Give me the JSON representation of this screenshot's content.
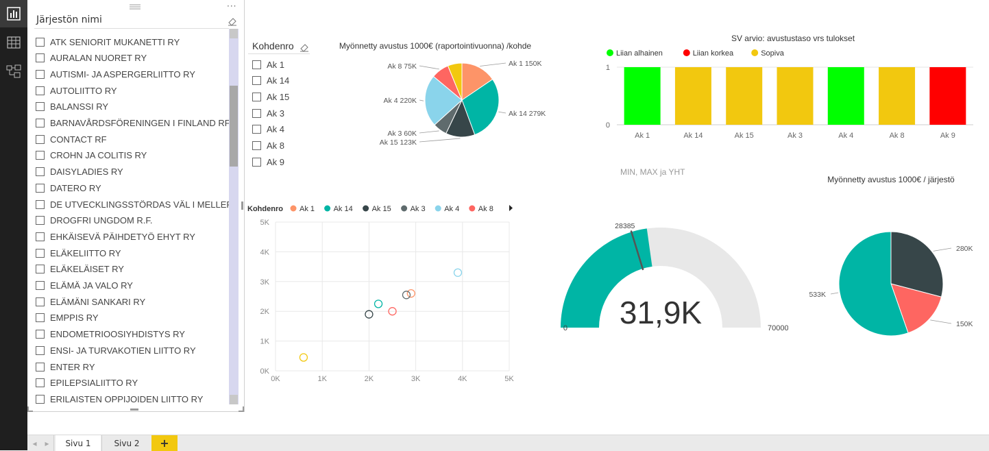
{
  "nav": {
    "items": [
      {
        "icon": "report-view-icon",
        "active": true
      },
      {
        "icon": "data-view-icon",
        "active": false
      },
      {
        "icon": "relationships-view-icon",
        "active": false
      }
    ]
  },
  "org_slicer": {
    "title": "Järjestön nimi",
    "items": [
      "ATK SENIORIT MUKANETTI RY",
      "AURALAN NUORET RY",
      "AUTISMI- JA ASPERGERLIITTO RY",
      "AUTOLIITTO RY",
      "BALANSSI RY",
      "BARNAVÅRDSFÖRENINGEN I FINLAND RF",
      "CONTACT RF",
      "CROHN JA COLITIS RY",
      "DAISYLADIES RY",
      "DATERO RY",
      "DE UTVECKLINGSSTÖRDAS VÄL I MELLERSTA",
      "DROGFRI UNGDOM R.F.",
      "EHKÄISEVÄ PÄIHDETYÖ EHYT RY",
      "ELÄKELIITTO RY",
      "ELÄKELÄISET RY",
      "ELÄMÄ JA VALO RY",
      "ELÄMÄNI SANKARI RY",
      "EMPPIS RY",
      "ENDOMETRIOOSIYHDISTYS RY",
      "ENSI- JA TURVAKOTIEN LIITTO RY",
      "ENTER RY",
      "EPILEPSIALIITTO RY",
      "ERILAISTEN OPPIJOIDEN LIITTO RY"
    ]
  },
  "kohde_slicer": {
    "title": "Kohdenro",
    "items": [
      "Ak 1",
      "Ak 14",
      "Ak 15",
      "Ak 3",
      "Ak 4",
      "Ak 8",
      "Ak 9"
    ]
  },
  "tabs": [
    {
      "label": "Sivu 1",
      "active": true
    },
    {
      "label": "Sivu 2",
      "active": false
    },
    {
      "label": "+",
      "add": true
    }
  ],
  "gauge_title": "MIN, MAX ja YHT",
  "colors": {
    "ak1": "#fd9468",
    "ak14": "#00b5a5",
    "ak15": "#374649",
    "ak3": "#5f6b6d",
    "ak4": "#8ad4eb",
    "ak8": "#fe6661",
    "ak9": "#f2c80f",
    "green": "#00ff00",
    "red": "#ff0000",
    "gold": "#f2c80f",
    "track": "#e8e8e8",
    "accent_tab": "#f2c80f"
  },
  "chart_data": [
    {
      "id": "pie-kohde",
      "type": "pie",
      "title": "Myönnetty avustus 1000€ (raportointivuonna) /kohde",
      "slices": [
        {
          "name": "Ak 1",
          "value": 150,
          "label": "Ak 1 150K"
        },
        {
          "name": "Ak 14",
          "value": 279,
          "label": "Ak 14 279K"
        },
        {
          "name": "Ak 15",
          "value": 123,
          "label": "Ak 15 123K"
        },
        {
          "name": "Ak 3",
          "value": 60,
          "label": "Ak 3 60K"
        },
        {
          "name": "Ak 4",
          "value": 220,
          "label": "Ak 4 220K"
        },
        {
          "name": "Ak 8",
          "value": 75,
          "label": "Ak 8 75K"
        },
        {
          "name": "Ak 9",
          "value": 60,
          "label": ""
        }
      ]
    },
    {
      "id": "bar-sv",
      "type": "bar",
      "title": "SV arvio: avustustaso vrs tulokset",
      "legend": [
        {
          "name": "Liian alhainen",
          "color": "#00ff00"
        },
        {
          "name": "Liian korkea",
          "color": "#ff0000"
        },
        {
          "name": "Sopiva",
          "color": "#f2c80f"
        }
      ],
      "categories": [
        "Ak 1",
        "Ak 14",
        "Ak 15",
        "Ak 3",
        "Ak 4",
        "Ak 8",
        "Ak 9"
      ],
      "values": [
        1,
        1,
        1,
        1,
        1,
        1,
        1
      ],
      "status": [
        "Liian alhainen",
        "Sopiva",
        "Sopiva",
        "Sopiva",
        "Liian alhainen",
        "Sopiva",
        "Liian korkea"
      ],
      "yticks": [
        "0",
        "1"
      ],
      "ylim": [
        0,
        1
      ]
    },
    {
      "id": "scatter-kohde",
      "type": "scatter",
      "legend_title": "Kohdenro",
      "legend": [
        "Ak 1",
        "Ak 14",
        "Ak 15",
        "Ak 3",
        "Ak 4",
        "Ak 8"
      ],
      "points": [
        {
          "name": "Ak 1",
          "x": 2900,
          "y": 2600
        },
        {
          "name": "Ak 14",
          "x": 2200,
          "y": 2250
        },
        {
          "name": "Ak 15",
          "x": 2000,
          "y": 1900
        },
        {
          "name": "Ak 3",
          "x": 2800,
          "y": 2550
        },
        {
          "name": "Ak 4",
          "x": 3900,
          "y": 3300
        },
        {
          "name": "Ak 8",
          "x": 2500,
          "y": 2000
        },
        {
          "name": "Ak 9",
          "x": 600,
          "y": 450
        }
      ],
      "xticks": [
        "0K",
        "1K",
        "2K",
        "3K",
        "4K",
        "5K"
      ],
      "yticks": [
        "0K",
        "1K",
        "2K",
        "3K",
        "4K",
        "5K"
      ],
      "xlim": [
        0,
        5000
      ],
      "ylim": [
        0,
        5000
      ]
    },
    {
      "id": "gauge",
      "type": "gauge",
      "value": 31900,
      "value_label": "31,9K",
      "min": 0,
      "min_label": "0",
      "max": 70000,
      "max_label": "70000",
      "target": 28385,
      "target_label": "28385"
    },
    {
      "id": "pie-org",
      "type": "pie",
      "title": "Myönnetty avustus 1000€  / järjestö",
      "slices": [
        {
          "name": "",
          "value": 280,
          "label": "280K",
          "color": "#374649"
        },
        {
          "name": "",
          "value": 150,
          "label": "150K",
          "color": "#fe6661"
        },
        {
          "name": "",
          "value": 533,
          "label": "533K",
          "color": "#00b5a5"
        }
      ]
    }
  ]
}
